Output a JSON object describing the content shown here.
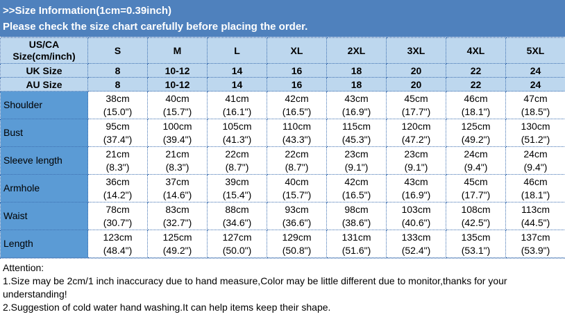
{
  "title": {
    "line1": ">>Size Information(1cm=0.39inch)",
    "line2": "Please check the size chart carefully before placing the order."
  },
  "colors": {
    "title_bg": "#4f81bd",
    "header_bg": "#bdd7ee",
    "label_bg": "#5b9bd5"
  },
  "header": {
    "label": "US/CA Size(cm/inch)",
    "sizes": [
      "S",
      "M",
      "L",
      "XL",
      "2XL",
      "3XL",
      "4XL",
      "5XL"
    ]
  },
  "uk": {
    "label": "UK Size",
    "values": [
      "8",
      "10-12",
      "14",
      "16",
      "18",
      "20",
      "22",
      "24"
    ]
  },
  "au": {
    "label": "AU Size",
    "values": [
      "8",
      "10-12",
      "14",
      "16",
      "18",
      "20",
      "22",
      "24"
    ]
  },
  "rows": [
    {
      "label": "Shoulder",
      "cm": [
        "38cm",
        "40cm",
        "41cm",
        "42cm",
        "43cm",
        "45cm",
        "46cm",
        "47cm"
      ],
      "inch": [
        "(15.0\")",
        "(15.7\")",
        "(16.1\")",
        "(16.5\")",
        "(16.9\")",
        "(17.7\")",
        "(18.1\")",
        "(18.5\")"
      ]
    },
    {
      "label": "Bust",
      "cm": [
        "95cm",
        "100cm",
        "105cm",
        "110cm",
        "115cm",
        "120cm",
        "125cm",
        "130cm"
      ],
      "inch": [
        "(37.4\")",
        "(39.4\")",
        "(41.3\")",
        "(43.3\")",
        "(45.3\")",
        "(47.2\")",
        "(49.2\")",
        "(51.2\")"
      ]
    },
    {
      "label": "Sleeve length",
      "cm": [
        "21cm",
        "21cm",
        "22cm",
        "22cm",
        "23cm",
        "23cm",
        "24cm",
        "24cm"
      ],
      "inch": [
        "(8.3\")",
        "(8.3\")",
        "(8.7\")",
        "(8.7\")",
        "(9.1\")",
        "(9.1\")",
        "(9.4\")",
        "(9.4\")"
      ]
    },
    {
      "label": "Armhole",
      "cm": [
        "36cm",
        "37cm",
        "39cm",
        "40cm",
        "42cm",
        "43cm",
        "45cm",
        "46cm"
      ],
      "inch": [
        "(14.2\")",
        "(14.6\")",
        "(15.4\")",
        "(15.7\")",
        "(16.5\")",
        "(16.9\")",
        "(17.7\")",
        "(18.1\")"
      ]
    },
    {
      "label": "Waist",
      "cm": [
        "78cm",
        "83cm",
        "88cm",
        "93cm",
        "98cm",
        "103cm",
        "108cm",
        "113cm"
      ],
      "inch": [
        "(30.7\")",
        "(32.7\")",
        "(34.6\")",
        "(36.6\")",
        "(38.6\")",
        "(40.6\")",
        "(42.5\")",
        "(44.5\")"
      ]
    },
    {
      "label": "Length",
      "cm": [
        "123cm",
        "125cm",
        "127cm",
        "129cm",
        "131cm",
        "133cm",
        "135cm",
        "137cm"
      ],
      "inch": [
        "(48.4\")",
        "(49.2\")",
        "(50.0\")",
        "(50.8\")",
        "(51.6\")",
        "(52.4\")",
        "(53.1\")",
        "(53.9\")"
      ]
    }
  ],
  "attention": {
    "heading": "Attention:",
    "notes": [
      "1.Size may be 2cm/1 inch inaccuracy due to hand measure,Color may be little different due to monitor,thanks for your understanding!",
      "2.Suggestion of cold water hand washing.It can help items keep their shape."
    ]
  }
}
